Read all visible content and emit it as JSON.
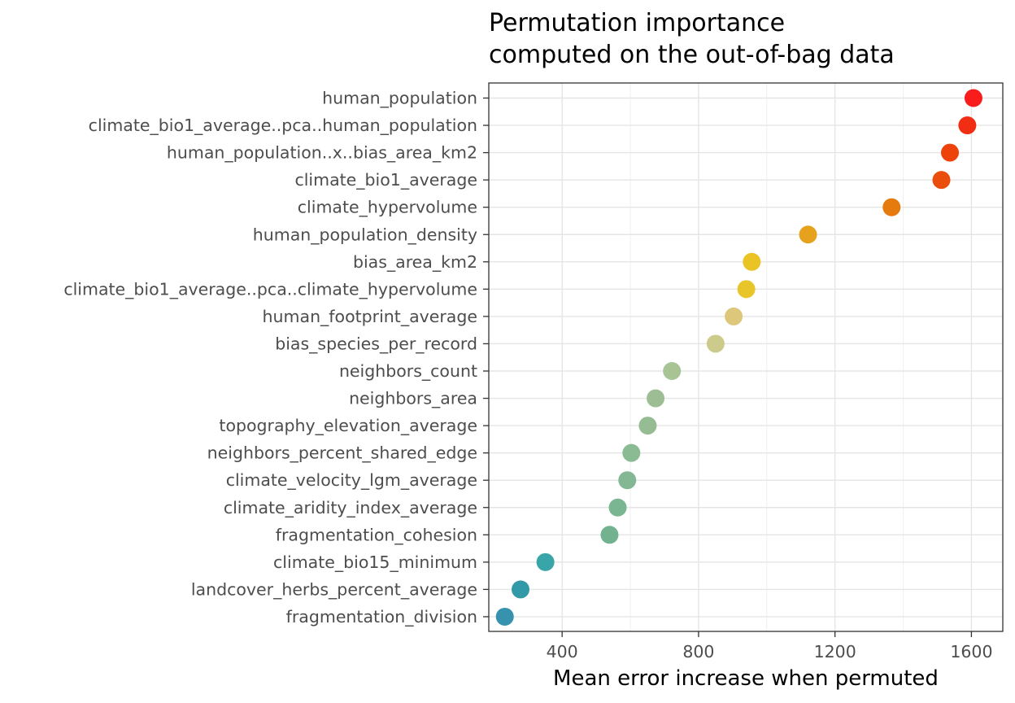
{
  "chart_data": {
    "type": "scatter",
    "title": [
      "Permutation importance",
      "computed on the out-of-bag data"
    ],
    "xlabel": "Mean error increase when permuted",
    "ylabel": "",
    "xlim": [
      185,
      1692
    ],
    "xticks": [
      400,
      800,
      1200,
      1600
    ],
    "xtick_labels": [
      "400",
      "800",
      "1200",
      "1600"
    ],
    "minor_xticks": [
      600,
      1000,
      1400
    ],
    "grid": true,
    "legend": "none",
    "points": [
      {
        "variable": "human_population",
        "value": 1606,
        "color": "#f81c1c"
      },
      {
        "variable": "climate_bio1_average..pca..human_population",
        "value": 1588,
        "color": "#f12d13"
      },
      {
        "variable": "human_population..x..bias_area_km2",
        "value": 1537,
        "color": "#ee420b"
      },
      {
        "variable": "climate_bio1_average",
        "value": 1512,
        "color": "#eb4d0c"
      },
      {
        "variable": "climate_hypervolume",
        "value": 1366,
        "color": "#e57a0e"
      },
      {
        "variable": "human_population_density",
        "value": 1121,
        "color": "#e6a21d"
      },
      {
        "variable": "bias_area_km2",
        "value": 956,
        "color": "#e9c424"
      },
      {
        "variable": "climate_bio1_average..pca..climate_hypervolume",
        "value": 940,
        "color": "#e8c52a"
      },
      {
        "variable": "human_footprint_average",
        "value": 903,
        "color": "#dcc77b"
      },
      {
        "variable": "bias_species_per_record",
        "value": 850,
        "color": "#cdcb8b"
      },
      {
        "variable": "neighbors_count",
        "value": 722,
        "color": "#a8c394"
      },
      {
        "variable": "neighbors_area",
        "value": 674,
        "color": "#9dbe95"
      },
      {
        "variable": "topography_elevation_average",
        "value": 651,
        "color": "#95bc93"
      },
      {
        "variable": "neighbors_percent_shared_edge",
        "value": 603,
        "color": "#8bbb93"
      },
      {
        "variable": "climate_velocity_lgm_average",
        "value": 591,
        "color": "#84b894"
      },
      {
        "variable": "climate_aridity_index_average",
        "value": 563,
        "color": "#7ab692"
      },
      {
        "variable": "fragmentation_cohesion",
        "value": 539,
        "color": "#73b28f"
      },
      {
        "variable": "climate_bio15_minimum",
        "value": 351,
        "color": "#38a5a8"
      },
      {
        "variable": "landcover_herbs_percent_average",
        "value": 278,
        "color": "#3299a8"
      },
      {
        "variable": "fragmentation_division",
        "value": 232,
        "color": "#3692ad"
      }
    ]
  }
}
